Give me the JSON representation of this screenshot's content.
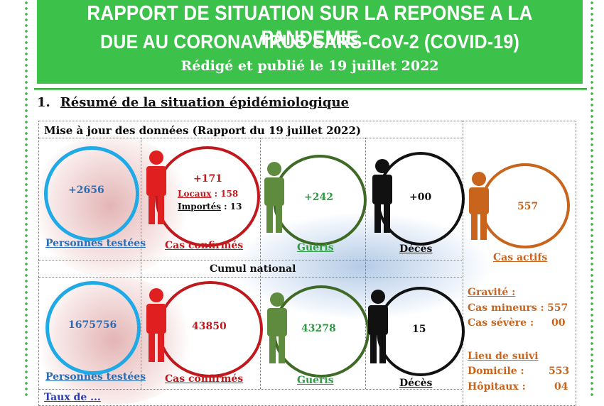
{
  "header": {
    "title_line1": "RAPPORT DE SITUATION SUR LA REPONSE A LA PANDEMIE",
    "title_line2": "DUE AU CORONAVIRUS SARS-CoV-2 (COVID-19)",
    "subtitle": "Rédigé et publié le 19 juillet 2022"
  },
  "section": {
    "number": "1.",
    "title": "Résumé de la situation épidémiologique"
  },
  "update": {
    "heading": "Mise à jour des données (Rapport du 19 juillet 2022)",
    "tested": {
      "value": "+2656",
      "label": "Personnes testées"
    },
    "confirmed": {
      "value": "+171",
      "local_label": "Locaux",
      "local_value": ": 158",
      "imported_label": "Importés",
      "imported_value": ": 13",
      "label": "Cas confirmés"
    },
    "recovered": {
      "value": "+242",
      "label": "Guéris"
    },
    "deaths": {
      "value": "+00",
      "label": "Décès"
    }
  },
  "active": {
    "value": "557",
    "label": "Cas actifs"
  },
  "cumulative": {
    "heading": "Cumul national",
    "tested": {
      "value": "1675756",
      "label": "Personnes testées"
    },
    "confirmed": {
      "value": "43850",
      "label": "Cas confirmés"
    },
    "recovered": {
      "value": "43278",
      "label": "Guéris"
    },
    "deaths": {
      "value": "15",
      "label": "Décès"
    }
  },
  "severity": {
    "heading": "Gravité :",
    "minor_label": "Cas mineurs :",
    "minor_value": "557",
    "severe_label": "Cas sévère :",
    "severe_value": "00"
  },
  "followup": {
    "heading": "Lieu de suivi",
    "home_label": "Domicile :",
    "home_value": "553",
    "hospital_label": "Hôpitaux :",
    "hospital_value": "04"
  },
  "footer_partial": "Taux de ..."
}
